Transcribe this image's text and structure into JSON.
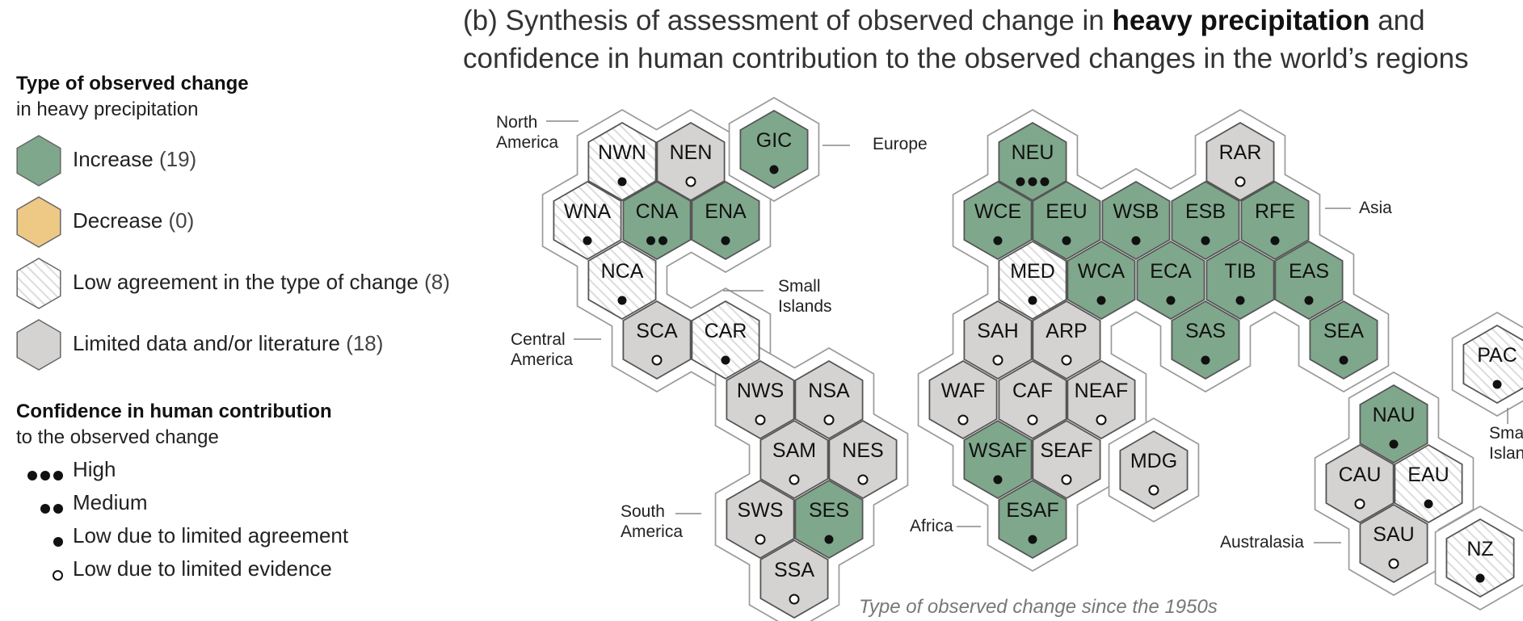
{
  "title": {
    "prefix": "(b) Synthesis of assessment of observed change in ",
    "bold": "heavy precipitation",
    "suffix": " and",
    "line2": "confidence in human contribution to the observed changes in the world’s regions"
  },
  "legend": {
    "type_heading_bold": "Type of observed change",
    "type_heading_sub": "in heavy precipitation",
    "types": [
      {
        "key": "increase",
        "label": "Increase",
        "count": "(19)",
        "color": "#7fa78c"
      },
      {
        "key": "decrease",
        "label": "Decrease",
        "count": "(0)",
        "color": "#eec986"
      },
      {
        "key": "low",
        "label": "Low agreement in the type of change",
        "count": "(8)",
        "color": "#ffffff"
      },
      {
        "key": "limited",
        "label": "Limited data and/or literature",
        "count": "(18)",
        "color": "#d4d3d1"
      }
    ],
    "confidence_heading_bold": "Confidence in human contribution",
    "confidence_heading_sub": "to the observed change",
    "confidence": [
      {
        "label": "High",
        "dots": 3,
        "filled": true
      },
      {
        "label": "Medium",
        "dots": 2,
        "filled": true
      },
      {
        "label": "Low due to limited agreement",
        "dots": 1,
        "filled": true
      },
      {
        "label": "Low due to limited evidence",
        "dots": 1,
        "filled": false
      }
    ]
  },
  "continent_labels": [
    "North\nAmerica",
    "Europe",
    "Asia",
    "Small\nIslands",
    "Central\nAmerica",
    "South\nAmerica",
    "Africa",
    "Small\nIslands",
    "Australasia"
  ],
  "regions": [
    {
      "code": "NWN",
      "type": "low",
      "conf": "1"
    },
    {
      "code": "NEN",
      "type": "limited",
      "conf": "o"
    },
    {
      "code": "GIC",
      "type": "increase",
      "conf": "1"
    },
    {
      "code": "WNA",
      "type": "low",
      "conf": "1"
    },
    {
      "code": "CNA",
      "type": "increase",
      "conf": "2"
    },
    {
      "code": "ENA",
      "type": "increase",
      "conf": "1"
    },
    {
      "code": "NCA",
      "type": "low",
      "conf": "1"
    },
    {
      "code": "SCA",
      "type": "limited",
      "conf": "o"
    },
    {
      "code": "CAR",
      "type": "low",
      "conf": "1"
    },
    {
      "code": "NWS",
      "type": "limited",
      "conf": "o"
    },
    {
      "code": "NSA",
      "type": "limited",
      "conf": "o"
    },
    {
      "code": "SAM",
      "type": "limited",
      "conf": "o"
    },
    {
      "code": "NES",
      "type": "limited",
      "conf": "o"
    },
    {
      "code": "SWS",
      "type": "limited",
      "conf": "o"
    },
    {
      "code": "SES",
      "type": "increase",
      "conf": "1"
    },
    {
      "code": "SSA",
      "type": "limited",
      "conf": "o"
    },
    {
      "code": "NEU",
      "type": "increase",
      "conf": "3"
    },
    {
      "code": "RAR",
      "type": "limited",
      "conf": "o"
    },
    {
      "code": "WCE",
      "type": "increase",
      "conf": "1"
    },
    {
      "code": "EEU",
      "type": "increase",
      "conf": "1"
    },
    {
      "code": "WSB",
      "type": "increase",
      "conf": "1"
    },
    {
      "code": "ESB",
      "type": "increase",
      "conf": "1"
    },
    {
      "code": "RFE",
      "type": "increase",
      "conf": "1"
    },
    {
      "code": "MED",
      "type": "low",
      "conf": "1"
    },
    {
      "code": "WCA",
      "type": "increase",
      "conf": "1"
    },
    {
      "code": "ECA",
      "type": "increase",
      "conf": "1"
    },
    {
      "code": "TIB",
      "type": "increase",
      "conf": "1"
    },
    {
      "code": "EAS",
      "type": "increase",
      "conf": "1"
    },
    {
      "code": "SAH",
      "type": "limited",
      "conf": "o"
    },
    {
      "code": "ARP",
      "type": "limited",
      "conf": "o"
    },
    {
      "code": "SAS",
      "type": "increase",
      "conf": "1"
    },
    {
      "code": "SEA",
      "type": "increase",
      "conf": "1"
    },
    {
      "code": "WAF",
      "type": "limited",
      "conf": "o"
    },
    {
      "code": "CAF",
      "type": "limited",
      "conf": "o"
    },
    {
      "code": "NEAF",
      "type": "limited",
      "conf": "o"
    },
    {
      "code": "WSAF",
      "type": "increase",
      "conf": "1"
    },
    {
      "code": "SEAF",
      "type": "limited",
      "conf": "o"
    },
    {
      "code": "MDG",
      "type": "limited",
      "conf": "o"
    },
    {
      "code": "ESAF",
      "type": "increase",
      "conf": "1"
    },
    {
      "code": "PAC",
      "type": "low",
      "conf": "1"
    },
    {
      "code": "NAU",
      "type": "increase",
      "conf": "1"
    },
    {
      "code": "CAU",
      "type": "limited",
      "conf": "o"
    },
    {
      "code": "EAU",
      "type": "low",
      "conf": "1"
    },
    {
      "code": "SAU",
      "type": "limited",
      "conf": "o"
    },
    {
      "code": "NZ",
      "type": "low",
      "conf": "1"
    }
  ],
  "footer": "Type of observed change since the 1950s"
}
